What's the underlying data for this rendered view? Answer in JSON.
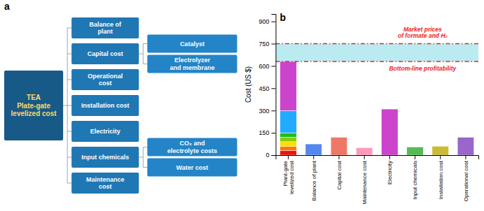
{
  "chart_data": [
    {
      "type": "tree",
      "title": "a",
      "name": "TEA\nPlate-gate\nlevelized cost",
      "children": [
        {
          "name": "Balance of\nplant"
        },
        {
          "name": "Capital cost",
          "children": [
            {
              "name": "Catalyst"
            },
            {
              "name": "Electrolyzer\nand membrane"
            }
          ]
        },
        {
          "name": "Operational\ncost"
        },
        {
          "name": "Installation cost"
        },
        {
          "name": "Electricity"
        },
        {
          "name": "Input chemicals",
          "children": [
            {
              "name": "CO₂ and\nelectrolyte costs"
            },
            {
              "name": "Water cost"
            }
          ]
        },
        {
          "name": "Maintenance\ncost"
        }
      ]
    },
    {
      "type": "bar",
      "title": "b",
      "stacked": true,
      "grid": false,
      "ylabel": "Cost (US $)",
      "categories": [
        "Plant-gate\nlevelized cost",
        "Balance of plant",
        "Capital cost",
        "Maintenance cost",
        "Electricity",
        "Input chemicals",
        "Installation cost",
        "Operational cost"
      ],
      "series": [
        {
          "color": "#EE1111",
          "values": [
            30,
            null,
            null,
            null,
            null,
            null,
            null,
            null
          ]
        },
        {
          "color": "#FF7700",
          "values": [
            30,
            null,
            null,
            null,
            null,
            null,
            null,
            null
          ]
        },
        {
          "color": "#FFDD00",
          "values": [
            30,
            null,
            null,
            null,
            null,
            null,
            null,
            null
          ]
        },
        {
          "color": "#88CC00",
          "values": [
            30,
            null,
            null,
            null,
            null,
            null,
            null,
            null
          ]
        },
        {
          "color": "#22BB22",
          "values": [
            30,
            null,
            null,
            null,
            null,
            null,
            null,
            null
          ]
        },
        {
          "color": "#22AAFF",
          "values": [
            150,
            null,
            null,
            null,
            null,
            null,
            null,
            null
          ]
        },
        {
          "color": "#CC44CC",
          "values": [
            330,
            null,
            null,
            null,
            null,
            null,
            null,
            null
          ]
        },
        {
          "colors": [
            null,
            "#5588EE",
            "#EE7766",
            "#FF99BB",
            "#CC44CC",
            "#55BB55",
            "#CCBB33",
            "#9966CC"
          ],
          "values": [
            null,
            75,
            120,
            50,
            310,
            55,
            60,
            120
          ]
        }
      ],
      "annotations": [
        {
          "value": 750,
          "label": "Market prices\nof formate and H₂",
          "color": "#EE2222"
        },
        {
          "value": 630,
          "label": "Bottom-line profitability",
          "color": "#EE2222"
        }
      ],
      "ylim": [
        0,
        950
      ],
      "yticks": [
        0,
        150,
        300,
        450,
        600,
        750,
        900
      ]
    }
  ]
}
